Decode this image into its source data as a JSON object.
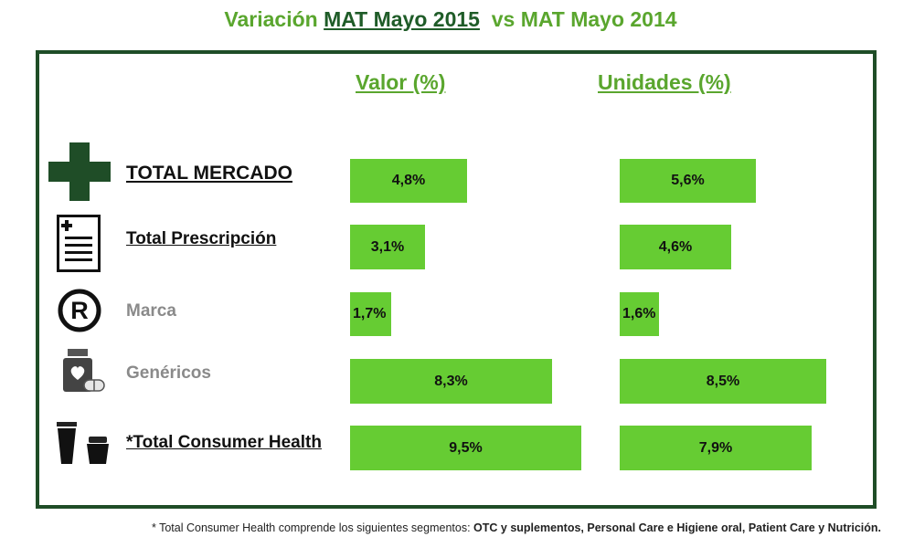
{
  "title": {
    "prefix": "Variación ",
    "underlined": "MAT Mayo 2015",
    "suffix": "  vs MAT Mayo 2014"
  },
  "footnote": {
    "prefix": "* Total Consumer Health comprende los siguientes segmentos: ",
    "bold": "OTC y suplementos, Personal Care e Higiene oral, Patient Care y Nutrición."
  },
  "colors": {
    "bar": "#66cc33",
    "title": "#5aa62e",
    "frame": "#1f4d27",
    "icon_dark": "#1f4d27"
  },
  "chart_data": {
    "type": "bar",
    "orientation": "horizontal",
    "categories": [
      "TOTAL MERCADO",
      "Total Prescripción",
      "Marca",
      "Genéricos",
      "*Total Consumer Health"
    ],
    "icons": [
      "medical-cross-icon",
      "prescription-icon",
      "registered-trademark-icon",
      "pill-bottle-icon",
      "cosmetics-icon"
    ],
    "series": [
      {
        "name": "Valor (%)",
        "values": [
          4.8,
          3.1,
          1.7,
          8.3,
          9.5
        ],
        "labels": [
          "4,8%",
          "3,1%",
          "1,7%",
          "8,3%",
          "9,5%"
        ]
      },
      {
        "name": "Unidades (%)",
        "values": [
          5.6,
          4.6,
          1.6,
          8.5,
          7.9
        ],
        "labels": [
          "5,6%",
          "4,6%",
          "1,6%",
          "8,5%",
          "7,9%"
        ]
      }
    ]
  }
}
